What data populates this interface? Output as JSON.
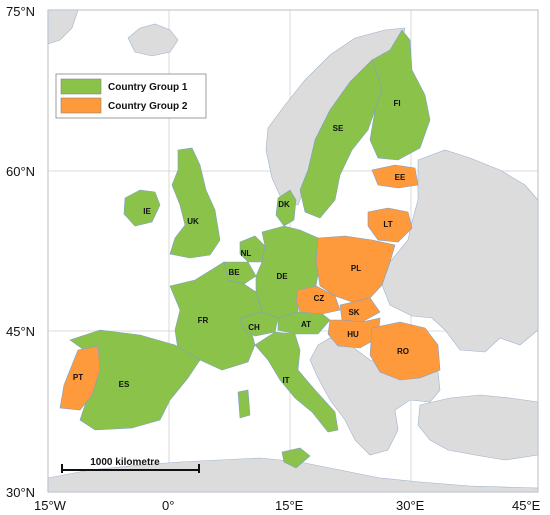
{
  "colors": {
    "group1": "#8bc34a",
    "group2": "#ff9a3c",
    "other": "#dcdcdc",
    "sea": "#ffffff",
    "grid": "#c8c8c8",
    "border": "#8fa8c8"
  },
  "latitude_labels": [
    "75°N",
    "60°N",
    "45°N",
    "30°N"
  ],
  "longitude_labels": [
    "15°W",
    "0°",
    "15°E",
    "30°E",
    "45°E"
  ],
  "legend": [
    {
      "label": "Country Group 1",
      "color_key": "group1"
    },
    {
      "label": "Country Group 2",
      "color_key": "group2"
    }
  ],
  "scale_bar": {
    "label": "1000 kilometre"
  },
  "country_groups": {
    "group1": [
      "FI",
      "SE",
      "IE",
      "UK",
      "DK",
      "NL",
      "BE",
      "DE",
      "FR",
      "CH",
      "AT",
      "ES",
      "IT"
    ],
    "group2": [
      "EE",
      "LT",
      "PL",
      "CZ",
      "SK",
      "HU",
      "RO",
      "PT"
    ]
  },
  "country_labels": {
    "FI": "FI",
    "SE": "SE",
    "EE": "EE",
    "IE": "IE",
    "UK": "UK",
    "DK": "DK",
    "LT": "LT",
    "NL": "NL",
    "BE": "BE",
    "DE": "DE",
    "PL": "PL",
    "CZ": "CZ",
    "SK": "SK",
    "FR": "FR",
    "CH": "CH",
    "AT": "AT",
    "HU": "HU",
    "RO": "RO",
    "PT": "PT",
    "ES": "ES",
    "IT": "IT"
  }
}
